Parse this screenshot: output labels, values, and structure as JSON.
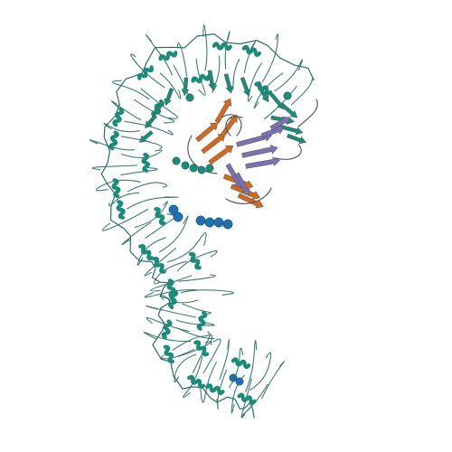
{
  "image": {
    "subject": "protein-ribbon-structure",
    "background_color": "#ffffff",
    "chains": [
      {
        "name": "leucine-rich-repeat-chain",
        "color": "#1a8c7a"
      },
      {
        "name": "orange-beta-domain",
        "color": "#d2691e"
      },
      {
        "name": "purple-beta-domain",
        "color": "#7a72b0"
      },
      {
        "name": "glycan-spheres",
        "color": "#1f6fb5"
      }
    ],
    "coil_color": "#2a6e66",
    "sheet_outline_color": "#4a4a4a"
  }
}
